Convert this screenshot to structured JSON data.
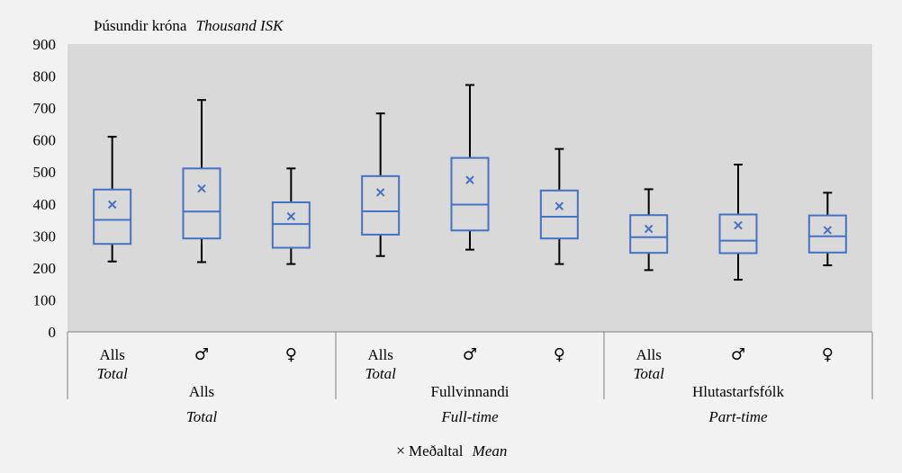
{
  "chart_data": {
    "type": "boxplot",
    "title": "",
    "ylabel": "Þúsundir króna",
    "ylabel_en": "Thousand ISK",
    "ylim": [
      0,
      900
    ],
    "yticks": [
      0,
      100,
      200,
      300,
      400,
      500,
      600,
      700,
      800,
      900
    ],
    "plot_background": "#d9d9d9",
    "box_color": "#4472c4",
    "whisker_color": "#000000",
    "groups": [
      {
        "label": "Alls",
        "label_en": "Total"
      },
      {
        "label": "Fullvinnandi",
        "label_en": "Full-time"
      },
      {
        "label": "Hlutastarfsfólk",
        "label_en": "Part-time"
      }
    ],
    "categories": [
      {
        "label": "Alls",
        "label_en": "Total",
        "group": 0,
        "min": 220,
        "q1": 275,
        "median": 350,
        "q3": 445,
        "max": 610,
        "mean": 398
      },
      {
        "label": "♂",
        "label_en": "",
        "group": 0,
        "min": 218,
        "q1": 292,
        "median": 376,
        "q3": 511,
        "max": 725,
        "mean": 448
      },
      {
        "label": "♀",
        "label_en": "",
        "group": 0,
        "min": 212,
        "q1": 263,
        "median": 337,
        "q3": 405,
        "max": 511,
        "mean": 361
      },
      {
        "label": "Alls",
        "label_en": "Total",
        "group": 1,
        "min": 237,
        "q1": 304,
        "median": 377,
        "q3": 487,
        "max": 683,
        "mean": 436
      },
      {
        "label": "♂",
        "label_en": "",
        "group": 1,
        "min": 257,
        "q1": 317,
        "median": 398,
        "q3": 544,
        "max": 772,
        "mean": 475
      },
      {
        "label": "♀",
        "label_en": "",
        "group": 1,
        "min": 212,
        "q1": 292,
        "median": 360,
        "q3": 442,
        "max": 572,
        "mean": 393
      },
      {
        "label": "Alls",
        "label_en": "Total",
        "group": 2,
        "min": 193,
        "q1": 247,
        "median": 296,
        "q3": 365,
        "max": 446,
        "mean": 322
      },
      {
        "label": "♂",
        "label_en": "",
        "group": 2,
        "min": 163,
        "q1": 246,
        "median": 285,
        "q3": 367,
        "max": 523,
        "mean": 333
      },
      {
        "label": "♀",
        "label_en": "",
        "group": 2,
        "min": 208,
        "q1": 248,
        "median": 299,
        "q3": 364,
        "max": 435,
        "mean": 318
      }
    ],
    "legend": {
      "marker": "×",
      "label": "Meðaltal",
      "label_en": "Mean",
      "position": "bottom"
    }
  }
}
